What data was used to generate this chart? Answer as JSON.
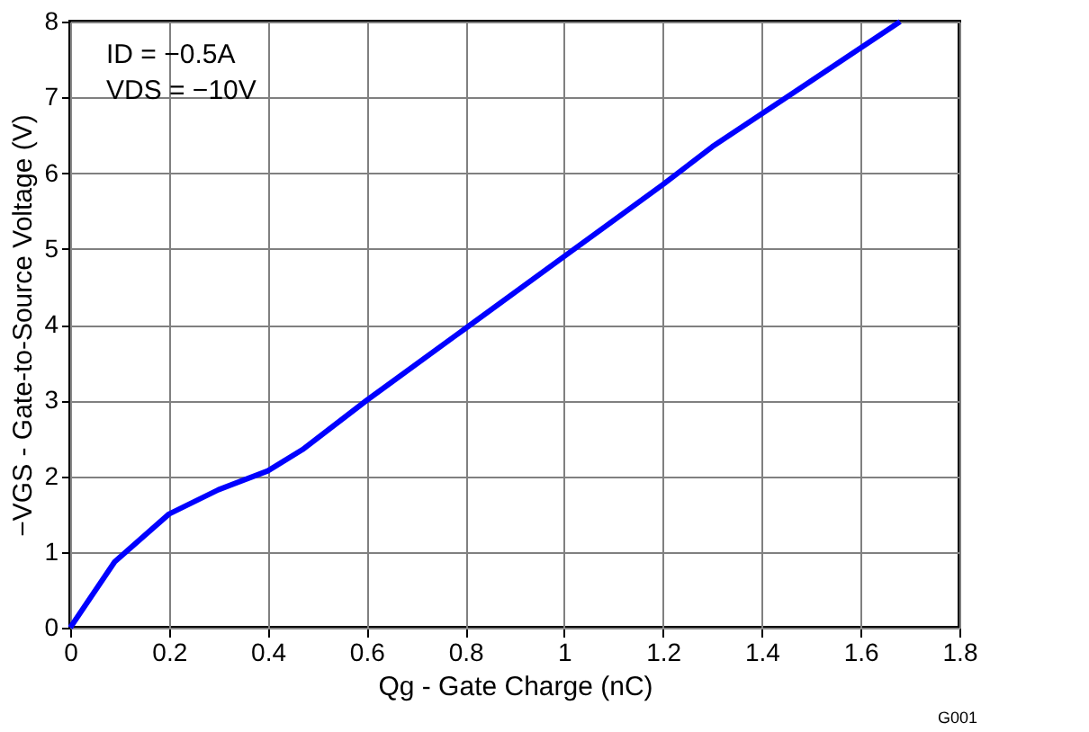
{
  "chart_data": {
    "type": "line",
    "xlabel": "Qg - Gate Charge (nC)",
    "ylabel": "−VGS - Gate-to-Source Voltage (V)",
    "x": [
      0,
      0.09,
      0.2,
      0.3,
      0.4,
      0.47,
      0.6,
      0.8,
      1.0,
      1.2,
      1.3,
      1.45,
      1.68
    ],
    "series": [
      {
        "color": "#0000ff",
        "values": [
          0,
          0.87,
          1.5,
          1.82,
          2.07,
          2.35,
          3.0,
          3.95,
          4.9,
          5.85,
          6.35,
          7.0,
          8.0
        ]
      }
    ],
    "xlim": [
      0,
      1.8
    ],
    "xticks": [
      0,
      0.2,
      0.4,
      0.6,
      0.8,
      1,
      1.2,
      1.4,
      1.6,
      1.8
    ],
    "ylim": [
      0,
      8
    ],
    "yticks": [
      0,
      1,
      2,
      3,
      4,
      5,
      6,
      7,
      8
    ],
    "grid": true,
    "marker": "none",
    "line_style": "solid",
    "annotations": [
      "ID = −0.5A",
      "VDS = −10V",
      "G001"
    ]
  }
}
